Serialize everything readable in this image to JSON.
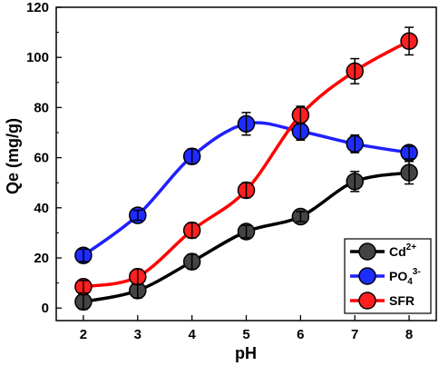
{
  "chart_data": {
    "type": "line",
    "xlabel": "pH",
    "ylabel": "Qe (mg/g)",
    "xlim": [
      1.5,
      8.5
    ],
    "ylim": [
      -5,
      120
    ],
    "xticks": [
      2,
      3,
      4,
      5,
      6,
      7,
      8
    ],
    "yticks": [
      0,
      20,
      40,
      60,
      80,
      100,
      120
    ],
    "x": [
      2,
      3,
      4,
      5,
      6,
      7,
      8
    ],
    "series": [
      {
        "name": "Cd",
        "sup": "2+",
        "sub": "",
        "color": "#444444",
        "line_color": "#000000",
        "values": [
          2.5,
          7,
          18.5,
          30.5,
          36.5,
          50.5,
          54
        ],
        "errors": [
          3,
          3,
          3,
          2.5,
          2,
          4,
          4.5
        ]
      },
      {
        "name": "PO",
        "sup": "3-",
        "sub": "4",
        "color": "#1f2cff",
        "line_color": "#1f1fff",
        "values": [
          21,
          37,
          60.5,
          73.5,
          70.5,
          65.5,
          62
        ],
        "errors": [
          2.5,
          2,
          3,
          4.5,
          3.5,
          3.5,
          2.5
        ]
      },
      {
        "name": "SFR",
        "sup": "",
        "sub": "",
        "color": "#ff1f1f",
        "line_color": "#ff0000",
        "values": [
          8.5,
          12.5,
          31,
          47,
          77,
          94.5,
          106.5
        ],
        "errors": [
          2.5,
          3,
          3,
          3,
          3.5,
          5,
          5.5
        ]
      }
    ],
    "legend_position": "bottom-right",
    "grid": false
  }
}
